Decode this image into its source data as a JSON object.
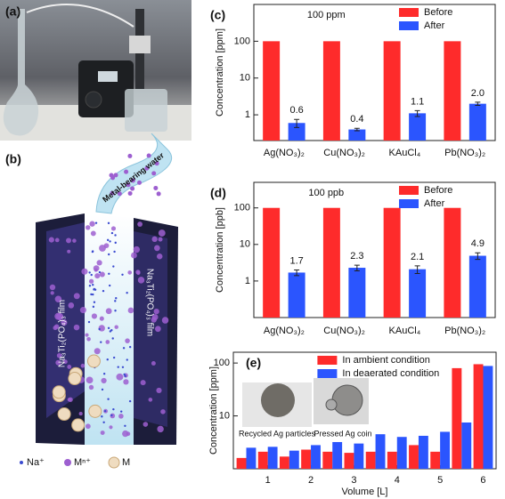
{
  "photo": {
    "label": "(a)"
  },
  "illustration": {
    "label": "(b)",
    "arrow_text": "Metal-bearing water",
    "film_left": "Na₃Ti₂(PO₄)₃ film",
    "film_right": "Na₃Ti₂(PO₄)₃ film",
    "legend": [
      "Na⁺",
      "Mⁿ⁺",
      "M"
    ]
  },
  "chart_data": [
    {
      "type": "bar",
      "panel_label": "(c)",
      "title": "100 ppm",
      "y_label": "Concentration [ppm]",
      "categories": [
        "Ag(NO₃)₂",
        "Cu(NO₃)₂",
        "KAuCl₄",
        "Pb(NO₃)₂"
      ],
      "series": [
        {
          "name": "Before",
          "color": "#fe2b2b",
          "values": [
            100,
            100,
            100,
            100
          ]
        },
        {
          "name": "After",
          "color": "#2b55fe",
          "values": [
            0.6,
            0.4,
            1.1,
            2.0
          ],
          "value_labels": [
            "0.6",
            "0.4",
            "1.1",
            "2.0"
          ],
          "errors": [
            0.15,
            0.03,
            0.2,
            0.2
          ]
        }
      ],
      "ylim": [
        0.2,
        1000
      ],
      "yticks": [
        1,
        10,
        100
      ],
      "log_y": true,
      "legend": "top-right"
    },
    {
      "type": "bar",
      "panel_label": "(d)",
      "title": "100 ppb",
      "y_label": "Concentration [ppb]",
      "categories": [
        "Ag(NO₃)₂",
        "Cu(NO₃)₂",
        "KAuCl₄",
        "Pb(NO₃)₂"
      ],
      "series": [
        {
          "name": "Before",
          "color": "#fe2b2b",
          "values": [
            100,
            100,
            100,
            100
          ]
        },
        {
          "name": "After",
          "color": "#2b55fe",
          "values": [
            1.7,
            2.3,
            2.1,
            4.9
          ],
          "errors": [
            0.3,
            0.4,
            0.5,
            1.0
          ]
        }
      ],
      "ylim": [
        0.1,
        500
      ],
      "yticks": [
        1,
        10,
        100
      ],
      "log_y": true,
      "legend": "top-right"
    },
    {
      "type": "bar",
      "panel_label": "(e)",
      "y_label": "Concentration [ppm]",
      "x_label": "Volume [L]",
      "x": [
        0.5,
        1,
        1.5,
        2,
        2.5,
        3,
        3.5,
        4,
        4.5,
        5,
        5.5,
        6
      ],
      "series": [
        {
          "name": "In ambient condition",
          "color": "#fe2b2b",
          "values": [
            1.6,
            2.1,
            1.7,
            2.3,
            2.1,
            2.0,
            2.1,
            2.1,
            2.8,
            2.1,
            80,
            95
          ]
        },
        {
          "name": "In deaerated condition",
          "color": "#2b55fe",
          "values": [
            2.5,
            2.6,
            2.2,
            2.8,
            3.2,
            3.0,
            4.5,
            4.0,
            4.2,
            5.0,
            7.5,
            88
          ]
        }
      ],
      "xlim": [
        0.2,
        6.3
      ],
      "xticks": [
        1,
        2,
        3,
        4,
        5,
        6
      ],
      "ylim": [
        1,
        160
      ],
      "yticks": [
        10,
        100
      ],
      "log_y": true,
      "legend": "top-center",
      "annotations": [
        "Recycled Ag particles",
        "Pressed Ag coin"
      ]
    }
  ]
}
